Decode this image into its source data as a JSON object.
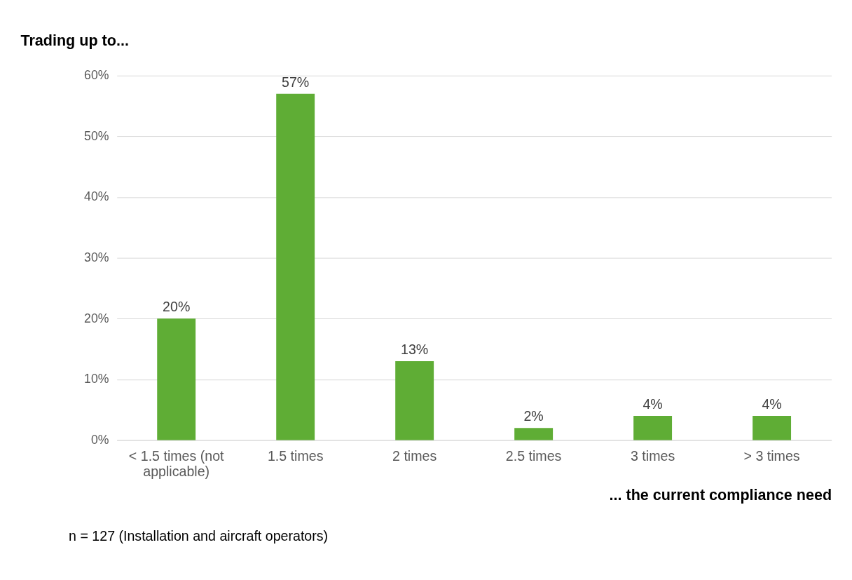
{
  "chart_data": {
    "type": "bar",
    "title": "Trading up to...",
    "xlabel": "... the current compliance need",
    "categories": [
      "< 1.5 times (not applicable)",
      "1.5 times",
      "2 times",
      "2.5 times",
      "3 times",
      "> 3 times"
    ],
    "values": [
      20,
      57,
      13,
      2,
      4,
      4
    ],
    "color": "#5fad35",
    "value_labels": [
      "20%",
      "57%",
      "13%",
      "2%",
      "4%",
      "4%"
    ],
    "ylim": [
      0,
      60
    ],
    "yticks": [
      {
        "value": 0,
        "label": "0%"
      },
      {
        "value": 10,
        "label": "10%"
      },
      {
        "value": 20,
        "label": "20%"
      },
      {
        "value": 30,
        "label": "30%"
      },
      {
        "value": 40,
        "label": "40%"
      },
      {
        "value": 50,
        "label": "50%"
      },
      {
        "value": 60,
        "label": "60%"
      }
    ],
    "grid": "y",
    "annotations": [
      "n = 127 (Installation and aircraft operators)"
    ]
  }
}
